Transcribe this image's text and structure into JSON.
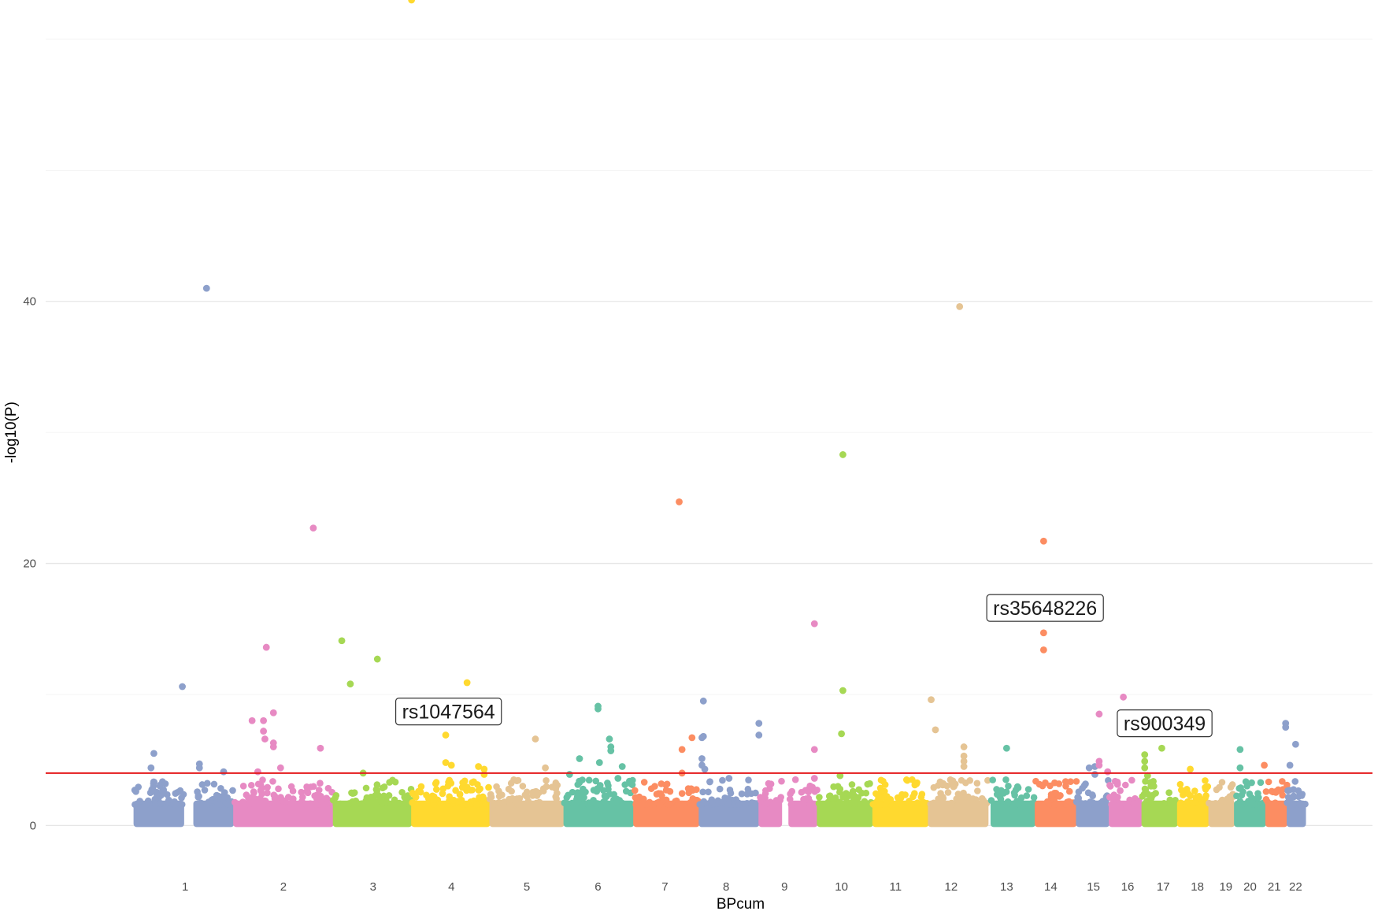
{
  "chart_data": {
    "type": "scatter",
    "subtype": "manhattan",
    "xlabel": "BPcum",
    "ylabel": "-log10(P)",
    "ylim": [
      -2.5,
      63
    ],
    "yticks": [
      0,
      20,
      40
    ],
    "grid": true,
    "legend": "none",
    "threshold": {
      "value": 4,
      "color": "#e41a1c"
    },
    "palette": [
      "#8da0cb",
      "#e78ac3",
      "#a6d854",
      "#ffd92f",
      "#e5c494",
      "#66c2a5",
      "#fc8d62"
    ],
    "chromosomes": [
      {
        "label": "1",
        "segments": [
          [
            0.0,
            3.5
          ],
          [
            4.2,
            7.0
          ]
        ],
        "label_pos": 3.6
      },
      {
        "label": "2",
        "segments": [
          [
            7.0,
            14.0
          ]
        ],
        "label_pos": 10.5
      },
      {
        "label": "3",
        "segments": [
          [
            14.0,
            19.5
          ]
        ],
        "label_pos": 16.8
      },
      {
        "label": "4",
        "segments": [
          [
            19.5,
            25.0
          ]
        ],
        "label_pos": 22.3
      },
      {
        "label": "5",
        "segments": [
          [
            25.0,
            30.2
          ]
        ],
        "label_pos": 27.6
      },
      {
        "label": "6",
        "segments": [
          [
            30.2,
            35.1
          ]
        ],
        "label_pos": 32.6
      },
      {
        "label": "7",
        "segments": [
          [
            35.1,
            39.7
          ]
        ],
        "label_pos": 37.3
      },
      {
        "label": "8",
        "segments": [
          [
            39.7,
            43.9
          ]
        ],
        "label_pos": 41.6
      },
      {
        "label": "9",
        "segments": [
          [
            43.9,
            45.5
          ],
          [
            46.0,
            48.0
          ]
        ],
        "label_pos": 45.7
      },
      {
        "label": "10",
        "segments": [
          [
            48.0,
            51.9
          ]
        ],
        "label_pos": 49.7
      },
      {
        "label": "11",
        "segments": [
          [
            51.9,
            55.8
          ]
        ],
        "label_pos": 53.5
      },
      {
        "label": "12",
        "segments": [
          [
            55.8,
            60.0
          ]
        ],
        "label_pos": 57.4
      },
      {
        "label": "13",
        "segments": [
          [
            60.2,
            63.3
          ]
        ],
        "label_pos": 61.3
      },
      {
        "label": "14",
        "segments": [
          [
            63.3,
            66.2
          ]
        ],
        "label_pos": 64.4
      },
      {
        "label": "15",
        "segments": [
          [
            66.2,
            68.5
          ]
        ],
        "label_pos": 67.4
      },
      {
        "label": "16",
        "segments": [
          [
            68.5,
            70.8
          ]
        ],
        "label_pos": 69.8
      },
      {
        "label": "17",
        "segments": [
          [
            70.8,
            73.3
          ]
        ],
        "label_pos": 72.3
      },
      {
        "label": "18",
        "segments": [
          [
            73.3,
            75.5
          ]
        ],
        "label_pos": 74.7
      },
      {
        "label": "19",
        "segments": [
          [
            75.5,
            77.3
          ]
        ],
        "label_pos": 76.7
      },
      {
        "label": "20",
        "segments": [
          [
            77.3,
            79.5
          ]
        ],
        "label_pos": 78.4
      },
      {
        "label": "21",
        "segments": [
          [
            79.5,
            81.0
          ]
        ],
        "label_pos": 80.1
      },
      {
        "label": "22",
        "segments": [
          [
            81.0,
            82.3
          ]
        ],
        "label_pos": 81.6
      }
    ],
    "highlight_points": [
      {
        "chr": 1,
        "x": 3.4,
        "y": 10.6
      },
      {
        "chr": 1,
        "x": 5.1,
        "y": 41.0
      },
      {
        "chr": 1,
        "x": 1.4,
        "y": 5.5
      },
      {
        "chr": 1,
        "x": 1.2,
        "y": 4.4
      },
      {
        "chr": 1,
        "x": 4.6,
        "y": 4.7
      },
      {
        "chr": 1,
        "x": 4.6,
        "y": 4.4
      },
      {
        "chr": 1,
        "x": 6.3,
        "y": 4.1
      },
      {
        "chr": 2,
        "x": 8.3,
        "y": 8.0
      },
      {
        "chr": 2,
        "x": 9.1,
        "y": 8.0
      },
      {
        "chr": 2,
        "x": 9.1,
        "y": 7.2
      },
      {
        "chr": 2,
        "x": 9.2,
        "y": 6.6
      },
      {
        "chr": 2,
        "x": 9.3,
        "y": 13.6
      },
      {
        "chr": 2,
        "x": 9.8,
        "y": 8.6
      },
      {
        "chr": 2,
        "x": 9.8,
        "y": 6.3
      },
      {
        "chr": 2,
        "x": 9.8,
        "y": 6.0
      },
      {
        "chr": 2,
        "x": 10.3,
        "y": 4.4
      },
      {
        "chr": 2,
        "x": 12.6,
        "y": 22.7
      },
      {
        "chr": 2,
        "x": 13.1,
        "y": 5.9
      },
      {
        "chr": 2,
        "x": 8.7,
        "y": 4.1
      },
      {
        "chr": 3,
        "x": 14.6,
        "y": 14.1
      },
      {
        "chr": 3,
        "x": 15.2,
        "y": 10.8
      },
      {
        "chr": 3,
        "x": 17.1,
        "y": 12.7
      },
      {
        "chr": 3,
        "x": 16.1,
        "y": 4.0
      },
      {
        "chr": 4,
        "x": 19.5,
        "y": 63.0
      },
      {
        "chr": 4,
        "x": 21.9,
        "y": 6.9
      },
      {
        "chr": 4,
        "x": 21.9,
        "y": 4.8
      },
      {
        "chr": 4,
        "x": 22.1,
        "y": 3.3
      },
      {
        "chr": 4,
        "x": 22.3,
        "y": 4.6
      },
      {
        "chr": 4,
        "x": 23.4,
        "y": 10.9
      },
      {
        "chr": 4,
        "x": 24.2,
        "y": 4.5
      },
      {
        "chr": 4,
        "x": 24.6,
        "y": 4.3
      },
      {
        "chr": 4,
        "x": 24.6,
        "y": 3.9
      },
      {
        "chr": 5,
        "x": 28.2,
        "y": 6.6
      },
      {
        "chr": 5,
        "x": 28.9,
        "y": 4.4
      },
      {
        "chr": 6,
        "x": 30.6,
        "y": 3.9
      },
      {
        "chr": 6,
        "x": 31.3,
        "y": 5.1
      },
      {
        "chr": 6,
        "x": 32.6,
        "y": 9.1
      },
      {
        "chr": 6,
        "x": 32.6,
        "y": 8.9
      },
      {
        "chr": 6,
        "x": 32.7,
        "y": 4.8
      },
      {
        "chr": 6,
        "x": 33.4,
        "y": 6.6
      },
      {
        "chr": 6,
        "x": 33.5,
        "y": 6.0
      },
      {
        "chr": 6,
        "x": 33.5,
        "y": 5.7
      },
      {
        "chr": 6,
        "x": 34.0,
        "y": 3.6
      },
      {
        "chr": 6,
        "x": 34.3,
        "y": 4.5
      },
      {
        "chr": 7,
        "x": 38.3,
        "y": 24.7
      },
      {
        "chr": 7,
        "x": 38.5,
        "y": 5.8
      },
      {
        "chr": 7,
        "x": 38.5,
        "y": 4.0
      },
      {
        "chr": 7,
        "x": 39.2,
        "y": 6.7
      },
      {
        "chr": 8,
        "x": 40.0,
        "y": 9.5
      },
      {
        "chr": 8,
        "x": 40.0,
        "y": 6.8
      },
      {
        "chr": 8,
        "x": 39.9,
        "y": 6.7
      },
      {
        "chr": 8,
        "x": 39.9,
        "y": 5.1
      },
      {
        "chr": 8,
        "x": 39.9,
        "y": 4.6
      },
      {
        "chr": 8,
        "x": 40.1,
        "y": 4.3
      },
      {
        "chr": 8,
        "x": 43.9,
        "y": 7.8
      },
      {
        "chr": 8,
        "x": 43.9,
        "y": 6.9
      },
      {
        "chr": 8,
        "x": 41.8,
        "y": 3.6
      },
      {
        "chr": 9,
        "x": 47.8,
        "y": 15.4
      },
      {
        "chr": 9,
        "x": 47.8,
        "y": 5.8
      },
      {
        "chr": 9,
        "x": 47.8,
        "y": 3.6
      },
      {
        "chr": 10,
        "x": 49.8,
        "y": 28.3
      },
      {
        "chr": 10,
        "x": 49.8,
        "y": 10.3
      },
      {
        "chr": 10,
        "x": 49.7,
        "y": 7.0
      },
      {
        "chr": 10,
        "x": 49.6,
        "y": 3.8
      },
      {
        "chr": 12,
        "x": 56.0,
        "y": 9.6
      },
      {
        "chr": 12,
        "x": 56.3,
        "y": 7.3
      },
      {
        "chr": 12,
        "x": 58.0,
        "y": 39.6
      },
      {
        "chr": 12,
        "x": 58.3,
        "y": 6.0
      },
      {
        "chr": 12,
        "x": 58.3,
        "y": 5.3
      },
      {
        "chr": 12,
        "x": 58.3,
        "y": 4.9
      },
      {
        "chr": 12,
        "x": 58.3,
        "y": 4.5
      },
      {
        "chr": 13,
        "x": 61.3,
        "y": 5.9
      },
      {
        "chr": 14,
        "x": 63.9,
        "y": 21.7
      },
      {
        "chr": 14,
        "x": 63.9,
        "y": 14.7
      },
      {
        "chr": 14,
        "x": 63.9,
        "y": 13.4
      },
      {
        "chr": 15,
        "x": 67.1,
        "y": 4.4
      },
      {
        "chr": 15,
        "x": 67.5,
        "y": 4.5
      },
      {
        "chr": 15,
        "x": 67.5,
        "y": 3.9
      },
      {
        "chr": 16,
        "x": 67.8,
        "y": 8.5
      },
      {
        "chr": 16,
        "x": 67.8,
        "y": 4.9
      },
      {
        "chr": 16,
        "x": 67.8,
        "y": 4.6
      },
      {
        "chr": 16,
        "x": 68.4,
        "y": 4.1
      },
      {
        "chr": 16,
        "x": 69.5,
        "y": 9.8
      },
      {
        "chr": 17,
        "x": 71.0,
        "y": 5.4
      },
      {
        "chr": 17,
        "x": 71.0,
        "y": 4.9
      },
      {
        "chr": 17,
        "x": 71.0,
        "y": 4.4
      },
      {
        "chr": 17,
        "x": 71.2,
        "y": 3.8
      },
      {
        "chr": 17,
        "x": 72.2,
        "y": 5.9
      },
      {
        "chr": 18,
        "x": 74.2,
        "y": 4.3
      },
      {
        "chr": 20,
        "x": 77.7,
        "y": 5.8
      },
      {
        "chr": 20,
        "x": 77.7,
        "y": 4.4
      },
      {
        "chr": 21,
        "x": 79.4,
        "y": 4.6
      },
      {
        "chr": 22,
        "x": 80.9,
        "y": 7.8
      },
      {
        "chr": 22,
        "x": 80.9,
        "y": 7.5
      },
      {
        "chr": 22,
        "x": 81.2,
        "y": 4.6
      },
      {
        "chr": 22,
        "x": 81.6,
        "y": 6.2
      }
    ],
    "annotations": [
      {
        "text": "rs1047564",
        "x": 22.1,
        "y": 8.7
      },
      {
        "text": "rs35648226",
        "x": 64.0,
        "y": 16.6
      },
      {
        "text": "rs900349",
        "x": 72.4,
        "y": 7.8
      }
    ]
  }
}
